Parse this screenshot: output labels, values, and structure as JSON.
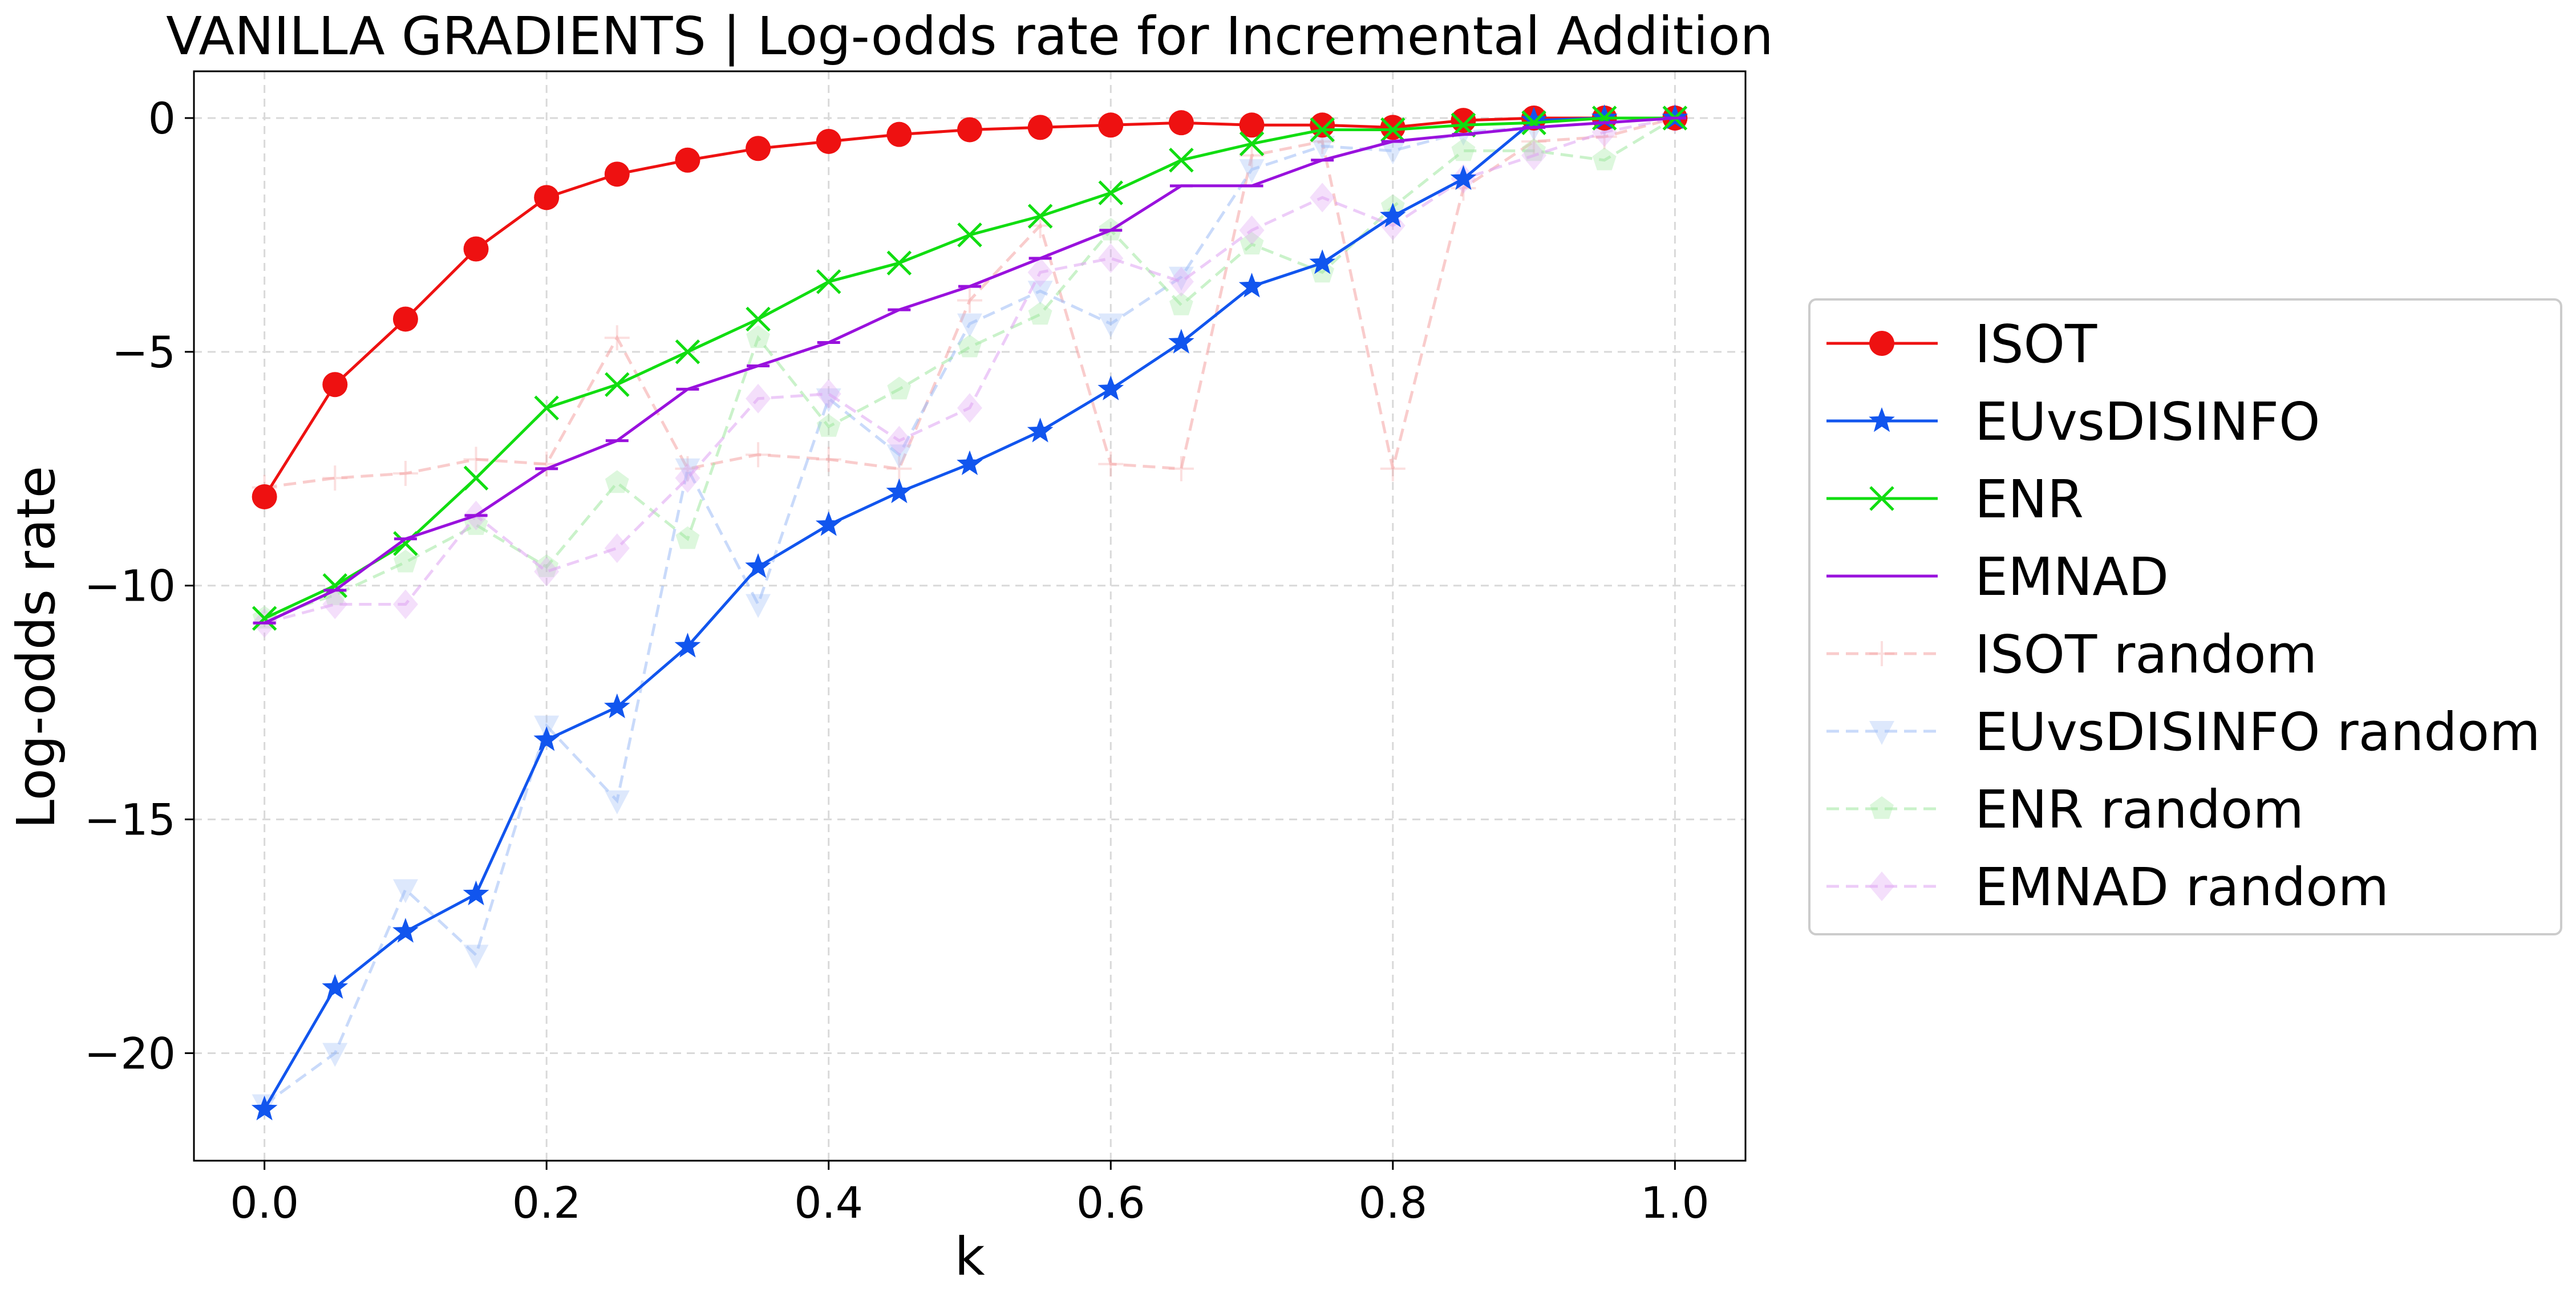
{
  "chart_data": {
    "type": "line",
    "title": "VANILLA GRADIENTS | Log-odds rate for Incremental Addition",
    "xlabel": "k",
    "ylabel": "Log-odds rate",
    "xlim": [
      -0.05,
      1.05
    ],
    "ylim": [
      -22.3,
      1.0
    ],
    "xticks": [
      0.0,
      0.2,
      0.4,
      0.6,
      0.8,
      1.0
    ],
    "xtick_labels": [
      "0.0",
      "0.2",
      "0.4",
      "0.6",
      "0.8",
      "1.0"
    ],
    "yticks": [
      0,
      -5,
      -10,
      -15,
      -20
    ],
    "ytick_labels": [
      "0",
      "−5",
      "−10",
      "−15",
      "−20"
    ],
    "grid": true,
    "legend_position": "outside-right",
    "x": [
      0.0,
      0.05,
      0.1,
      0.15,
      0.2,
      0.25,
      0.3,
      0.35,
      0.4,
      0.45,
      0.5,
      0.55,
      0.6,
      0.65,
      0.7,
      0.75,
      0.8,
      0.85,
      0.9,
      0.95,
      1.0
    ],
    "series": [
      {
        "name": "ISOT random",
        "color": "#f4a3a3",
        "marker": "plus",
        "dashed": true,
        "faded": true,
        "values": [
          -7.9,
          -7.7,
          -7.6,
          -7.3,
          -7.4,
          -4.7,
          -7.5,
          -7.2,
          -7.3,
          -7.5,
          -3.9,
          -2.3,
          -7.4,
          -7.5,
          -0.8,
          -0.5,
          -7.5,
          -1.5,
          -0.5,
          -0.4,
          0.0
        ]
      },
      {
        "name": "EUvsDISINFO random",
        "color": "#9dbcf5",
        "marker": "triangle-down",
        "dashed": true,
        "faded": true,
        "values": [
          -21.1,
          -20.0,
          -16.5,
          -17.9,
          -13.0,
          -14.6,
          -7.5,
          -10.4,
          -6.0,
          -7.2,
          -4.4,
          -3.7,
          -4.4,
          -3.4,
          -1.1,
          -0.6,
          -0.7,
          -0.3,
          -0.2,
          -0.1,
          0.0
        ]
      },
      {
        "name": "ENR random",
        "color": "#9fe89f",
        "marker": "pentagon",
        "dashed": true,
        "faded": true,
        "values": [
          -10.7,
          -10.2,
          -9.5,
          -8.7,
          -9.6,
          -7.8,
          -9.0,
          -4.7,
          -6.6,
          -5.8,
          -4.9,
          -4.2,
          -2.4,
          -4.0,
          -2.7,
          -3.3,
          -1.9,
          -0.7,
          -0.7,
          -0.9,
          0.0
        ]
      },
      {
        "name": "EMNAD random",
        "color": "#dfa3f3",
        "marker": "diamond",
        "dashed": true,
        "faded": true,
        "values": [
          -10.8,
          -10.4,
          -10.4,
          -8.5,
          -9.7,
          -9.2,
          -7.7,
          -6.0,
          -5.9,
          -6.9,
          -6.2,
          -3.3,
          -3.0,
          -3.5,
          -2.4,
          -1.7,
          -2.3,
          -1.3,
          -0.8,
          -0.3,
          0.0
        ]
      },
      {
        "name": "ISOT",
        "color": "#ee1111",
        "marker": "circle",
        "dashed": false,
        "faded": false,
        "values": [
          -8.1,
          -5.7,
          -4.3,
          -2.8,
          -1.7,
          -1.2,
          -0.9,
          -0.65,
          -0.5,
          -0.35,
          -0.25,
          -0.2,
          -0.15,
          -0.1,
          -0.15,
          -0.15,
          -0.2,
          -0.05,
          0.0,
          0.0,
          0.0
        ]
      },
      {
        "name": "EUvsDISINFO",
        "color": "#1155ee",
        "marker": "star",
        "dashed": false,
        "faded": false,
        "values": [
          -21.2,
          -18.6,
          -17.4,
          -16.6,
          -13.3,
          -12.6,
          -11.3,
          -9.6,
          -8.7,
          -8.0,
          -7.4,
          -6.7,
          -5.8,
          -4.8,
          -3.6,
          -3.1,
          -2.1,
          -1.3,
          -0.05,
          0.0,
          0.0
        ]
      },
      {
        "name": "ENR",
        "color": "#11dd11",
        "marker": "x",
        "dashed": false,
        "faded": false,
        "values": [
          -10.7,
          -10.0,
          -9.1,
          -7.7,
          -6.2,
          -5.7,
          -5.0,
          -4.3,
          -3.5,
          -3.1,
          -2.5,
          -2.1,
          -1.6,
          -0.9,
          -0.55,
          -0.25,
          -0.25,
          -0.15,
          -0.1,
          0.0,
          0.0
        ]
      },
      {
        "name": "EMNAD",
        "color": "#9911dd",
        "marker": "hline",
        "dashed": false,
        "faded": false,
        "values": [
          -10.8,
          -10.1,
          -9.0,
          -8.5,
          -7.5,
          -6.9,
          -5.8,
          -5.3,
          -4.8,
          -4.1,
          -3.6,
          -3.0,
          -2.4,
          -1.45,
          -1.45,
          -0.9,
          -0.5,
          -0.35,
          -0.2,
          -0.1,
          0.0
        ]
      }
    ],
    "legend_order": [
      "ISOT",
      "EUvsDISINFO",
      "ENR",
      "EMNAD",
      "ISOT random",
      "EUvsDISINFO random",
      "ENR random",
      "EMNAD random"
    ]
  }
}
